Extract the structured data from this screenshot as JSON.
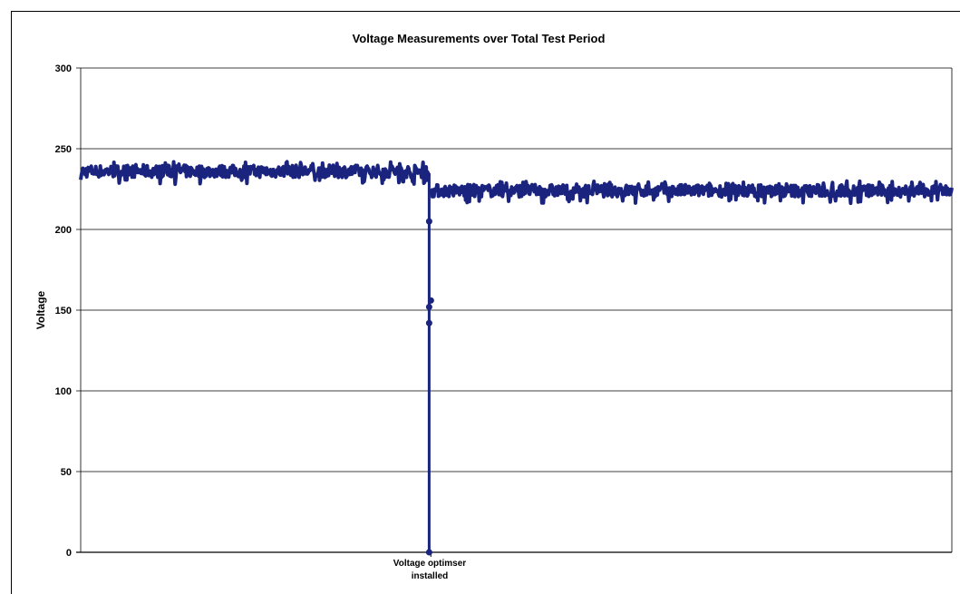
{
  "chart_data": {
    "type": "line",
    "title": "Voltage Measurements over Total Test Period",
    "xlabel": "",
    "ylabel": "Voltage",
    "ylim": [
      0,
      300
    ],
    "yticks": [
      0,
      50,
      100,
      150,
      200,
      250,
      300
    ],
    "grid": true,
    "legend": "none",
    "series_color": "#1a237e",
    "annotation": {
      "line1": "Voltage optimser",
      "line2": "installed",
      "x_fraction": 0.402
    },
    "series": [
      {
        "segments": [
          {
            "x_start": 0.0,
            "x_end": 0.4,
            "mean": 236,
            "min": 228,
            "max": 242
          },
          {
            "x_start": 0.4,
            "x_end": 0.402,
            "drop": [
              0,
              142,
              152,
              156,
              205
            ]
          },
          {
            "x_start": 0.402,
            "x_end": 1.0,
            "mean": 224,
            "min": 216,
            "max": 230
          }
        ]
      }
    ]
  }
}
